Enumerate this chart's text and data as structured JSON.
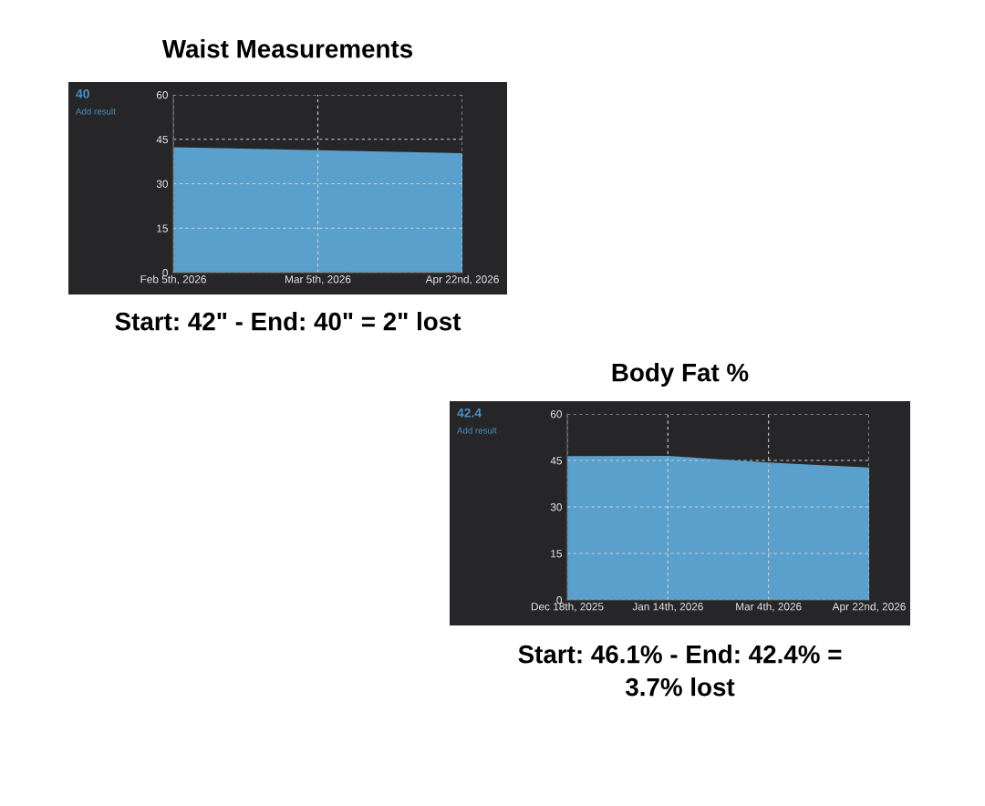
{
  "chart_data": [
    {
      "type": "area",
      "title": "Waist Measurements",
      "categories": [
        "Feb 5th, 2026",
        "Mar 5th, 2026",
        "Apr 22nd, 2026"
      ],
      "series": [
        {
          "color": "#5aa0cc",
          "values": [
            42,
            41,
            40
          ]
        }
      ],
      "ylim": [
        0,
        60
      ],
      "yticks": [
        0,
        15,
        30,
        45,
        60
      ],
      "grid": true,
      "line_style": "solid",
      "marker": "none",
      "annotations": [
        "40",
        "Add result",
        "Start: 42\" - End: 40\" = 2\" lost"
      ]
    },
    {
      "type": "area",
      "title": "Body Fat %",
      "categories": [
        "Dec 18th, 2025",
        "Jan 14th, 2026",
        "Mar 4th, 2026",
        "Apr 22nd, 2026"
      ],
      "series": [
        {
          "color": "#5aa0cc",
          "values": [
            46.1,
            46.2,
            44,
            42.4
          ]
        }
      ],
      "ylim": [
        0,
        60
      ],
      "yticks": [
        0,
        15,
        30,
        45,
        60
      ],
      "grid": true,
      "line_style": "solid",
      "marker": "none",
      "annotations": [
        "42.4",
        "Add result",
        "Start: 46.1% - End: 42.4% =\n3.7% lost"
      ]
    }
  ]
}
